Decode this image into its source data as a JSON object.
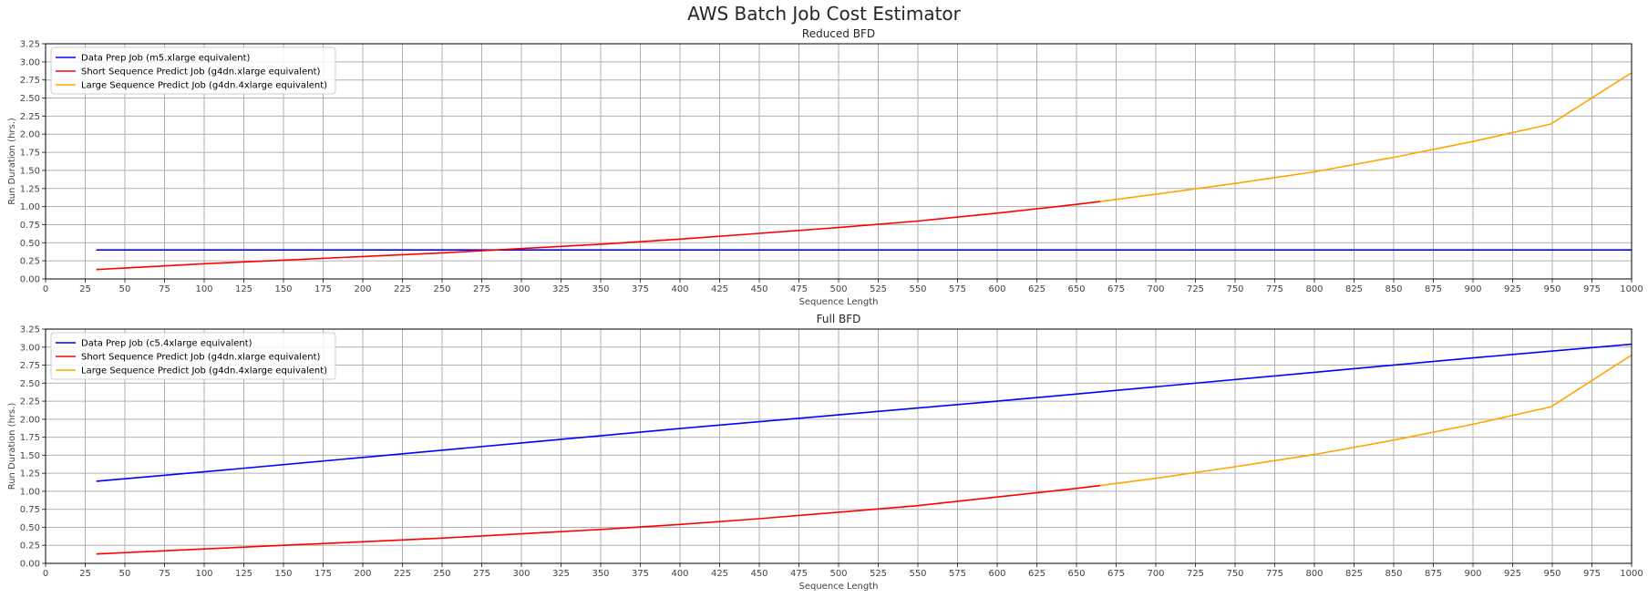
{
  "figure": {
    "title": "AWS Batch Job Cost Estimator"
  },
  "chart_data": [
    {
      "type": "line",
      "title": "Reduced BFD",
      "xlabel": "Sequence Length",
      "ylabel": "Run Duration (hrs.)",
      "xlim": [
        0,
        1000
      ],
      "ylim": [
        0,
        3.25
      ],
      "xticks": [
        0,
        25,
        50,
        75,
        100,
        125,
        150,
        175,
        200,
        225,
        250,
        275,
        300,
        325,
        350,
        375,
        400,
        425,
        450,
        475,
        500,
        525,
        550,
        575,
        600,
        625,
        650,
        675,
        700,
        725,
        750,
        775,
        800,
        825,
        850,
        875,
        900,
        925,
        950,
        975,
        1000
      ],
      "yticks": [
        0,
        0.25,
        0.5,
        0.75,
        1.0,
        1.25,
        1.5,
        1.75,
        2.0,
        2.25,
        2.5,
        2.75,
        3.0,
        3.25
      ],
      "grid": true,
      "legend_position": "top-left",
      "series": [
        {
          "name": "Data Prep Job (m5.xlarge equivalent)",
          "color": "#0000ff",
          "x": [
            32,
            1000
          ],
          "y": [
            0.4,
            0.4
          ]
        },
        {
          "name": "Short Sequence Predict Job (g4dn.xlarge equivalent)",
          "color": "#ff0000",
          "x": [
            32,
            100,
            150,
            200,
            250,
            300,
            350,
            400,
            450,
            500,
            550,
            600,
            650,
            665
          ],
          "y": [
            0.13,
            0.21,
            0.26,
            0.31,
            0.36,
            0.42,
            0.48,
            0.55,
            0.63,
            0.71,
            0.8,
            0.91,
            1.03,
            1.07
          ]
        },
        {
          "name": "Large Sequence Predict Job (g4dn.4xlarge equivalent)",
          "color": "#ffa500",
          "x": [
            665,
            700,
            750,
            800,
            850,
            900,
            949,
            1000
          ],
          "y": [
            1.07,
            1.17,
            1.32,
            1.48,
            1.68,
            1.9,
            2.14,
            2.85
          ]
        }
      ]
    },
    {
      "type": "line",
      "title": "Full BFD",
      "xlabel": "Sequence Length",
      "ylabel": "Run Duration (hrs.)",
      "xlim": [
        0,
        1000
      ],
      "ylim": [
        0,
        3.25
      ],
      "xticks": [
        0,
        25,
        50,
        75,
        100,
        125,
        150,
        175,
        200,
        225,
        250,
        275,
        300,
        325,
        350,
        375,
        400,
        425,
        450,
        475,
        500,
        525,
        550,
        575,
        600,
        625,
        650,
        675,
        700,
        725,
        750,
        775,
        800,
        825,
        850,
        875,
        900,
        925,
        950,
        975,
        1000
      ],
      "yticks": [
        0,
        0.25,
        0.5,
        0.75,
        1.0,
        1.25,
        1.5,
        1.75,
        2.0,
        2.25,
        2.5,
        2.75,
        3.0,
        3.25
      ],
      "grid": true,
      "legend_position": "top-left",
      "series": [
        {
          "name": "Data Prep Job (c5.4xlarge equivalent)",
          "color": "#0000ff",
          "x": [
            32,
            100,
            200,
            300,
            400,
            500,
            600,
            700,
            800,
            900,
            1000
          ],
          "y": [
            1.14,
            1.27,
            1.47,
            1.67,
            1.87,
            2.06,
            2.25,
            2.45,
            2.65,
            2.85,
            3.04
          ]
        },
        {
          "name": "Short Sequence Predict Job (g4dn.xlarge equivalent)",
          "color": "#ff0000",
          "x": [
            32,
            100,
            150,
            200,
            250,
            300,
            350,
            400,
            450,
            500,
            550,
            600,
            650,
            665
          ],
          "y": [
            0.13,
            0.2,
            0.25,
            0.3,
            0.35,
            0.41,
            0.47,
            0.54,
            0.62,
            0.71,
            0.8,
            0.92,
            1.04,
            1.08
          ]
        },
        {
          "name": "Large Sequence Predict Job (g4dn.4xlarge equivalent)",
          "color": "#ffa500",
          "x": [
            665,
            700,
            750,
            800,
            850,
            900,
            949,
            1000
          ],
          "y": [
            1.08,
            1.18,
            1.34,
            1.51,
            1.71,
            1.93,
            2.17,
            2.89
          ]
        }
      ]
    }
  ]
}
